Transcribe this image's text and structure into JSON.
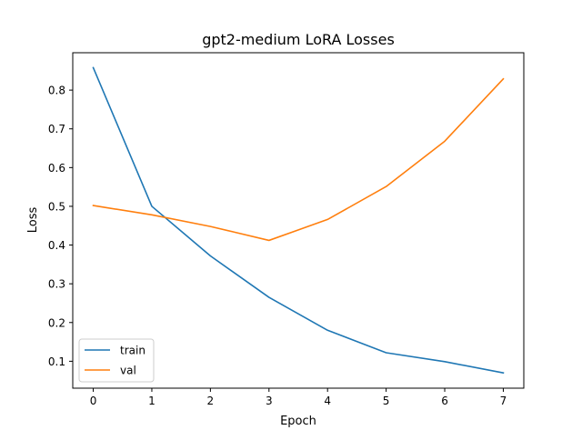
{
  "chart_data": {
    "type": "line",
    "title": "gpt2-medium  LoRA Losses",
    "xlabel": "Epoch",
    "ylabel": "Loss",
    "x": [
      0,
      1,
      2,
      3,
      4,
      5,
      6,
      7
    ],
    "xlim": [
      -0.35,
      7.35
    ],
    "ylim": [
      0.0305,
      0.8965
    ],
    "xticks": [
      0,
      1,
      2,
      3,
      4,
      5,
      6,
      7
    ],
    "yticks": [
      0.1,
      0.2,
      0.3,
      0.4,
      0.5,
      0.6,
      0.7,
      0.8
    ],
    "grid": false,
    "legend_position": "lower-left",
    "series": [
      {
        "name": "train",
        "color": "#1f77b4",
        "values": [
          0.858,
          0.5,
          0.372,
          0.265,
          0.18,
          0.122,
          0.099,
          0.07
        ]
      },
      {
        "name": "val",
        "color": "#ff7f0e",
        "values": [
          0.502,
          0.478,
          0.448,
          0.412,
          0.466,
          0.551,
          0.668,
          0.829
        ]
      }
    ]
  }
}
